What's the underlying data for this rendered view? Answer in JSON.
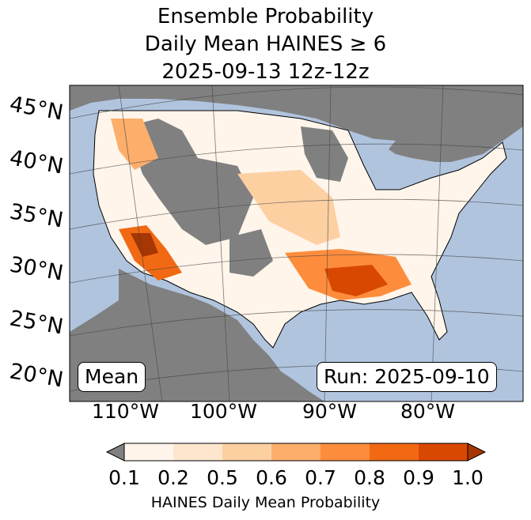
{
  "title": {
    "line1": "Ensemble Probability",
    "line2": "Daily Mean HAINES ≥ 6",
    "line3": "2025-09-13 12z-12z"
  },
  "map": {
    "region": "Continental United States",
    "colors": {
      "ocean": "#b0c4de",
      "land_masked": "#808080",
      "prob_0_1": "#fff5eb",
      "prob_0_2": "#fee6ce",
      "prob_0_5": "#fdd0a2",
      "prob_0_6": "#fdae6b",
      "prob_0_7": "#fd8d3c",
      "prob_0_8": "#f16913",
      "prob_0_9": "#d94801",
      "prob_1_0": "#a63603"
    },
    "lat_labels": [
      "45°N",
      "40°N",
      "35°N",
      "30°N",
      "25°N",
      "20°N"
    ],
    "lon_labels": [
      "110°W",
      "100°W",
      "90°W",
      "80°W"
    ],
    "mean_label": "Mean",
    "run_label": "Run: 2025-09-10"
  },
  "colorbar": {
    "ticks": [
      "0.1",
      "0.2",
      "0.5",
      "0.6",
      "0.7",
      "0.8",
      "0.9",
      "1.0"
    ],
    "label": "HAINES Daily Mean Probability"
  }
}
